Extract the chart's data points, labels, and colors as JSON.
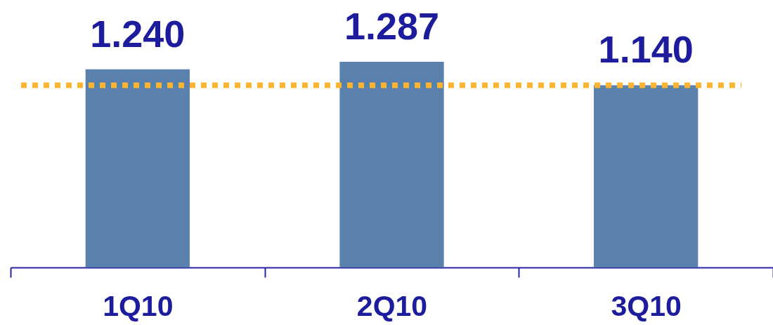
{
  "chart_data": {
    "type": "bar",
    "categories": [
      "1Q10",
      "2Q10",
      "3Q10"
    ],
    "values": [
      1.24,
      1.287,
      1.14
    ],
    "value_labels": [
      "1.240",
      "1.287",
      "1.140"
    ],
    "color": "#5a81ad",
    "ref_lines": [
      {
        "axis": "y",
        "value": 1.14,
        "color": "#fbb535",
        "line_style": "dotted"
      }
    ]
  }
}
